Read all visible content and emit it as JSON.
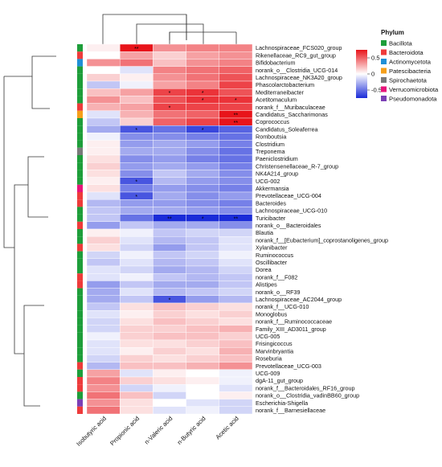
{
  "chart_data": {
    "type": "heatmap",
    "columns": [
      "Isobutyric acid",
      "Propionic acid",
      "n-Valeric acid",
      "n-Butyric acid",
      "Acetic acid"
    ],
    "rows": [
      {
        "name": "Lachnospiraceae_FCS020_group",
        "phylum": "Bacillota",
        "values": [
          0.05,
          0.75,
          0.35,
          0.4,
          0.4
        ],
        "sig": [
          "",
          "**",
          "",
          "",
          ""
        ]
      },
      {
        "name": "Rikenellaceae_RC9_gut_group",
        "phylum": "Bacteroidota",
        "values": [
          0.0,
          0.3,
          0.15,
          0.3,
          0.35
        ],
        "sig": [
          "",
          "",
          "",
          "",
          ""
        ]
      },
      {
        "name": "Bifidobacterium",
        "phylum": "Actinomycetota",
        "values": [
          0.35,
          0.45,
          0.2,
          0.35,
          0.4
        ],
        "sig": [
          "",
          "",
          "",
          "",
          ""
        ]
      },
      {
        "name": "norank_o__Clostridia_UCG-014",
        "phylum": "Bacillota",
        "values": [
          0.0,
          -0.1,
          0.4,
          0.45,
          0.5
        ],
        "sig": [
          "",
          "",
          "",
          "",
          ""
        ]
      },
      {
        "name": "Lachnospiraceae_NK3A20_group",
        "phylum": "Bacillota",
        "values": [
          0.15,
          0.05,
          0.35,
          0.45,
          0.55
        ],
        "sig": [
          "",
          "",
          "",
          "",
          ""
        ]
      },
      {
        "name": "Phascolarctobacterium",
        "phylum": "Bacillota",
        "values": [
          -0.2,
          -0.05,
          0.3,
          0.4,
          0.6
        ],
        "sig": [
          "",
          "",
          "",
          "",
          ""
        ]
      },
      {
        "name": "Mediterraneibacter",
        "phylum": "Bacillota",
        "values": [
          0.2,
          0.3,
          0.6,
          0.65,
          0.55
        ],
        "sig": [
          "",
          "",
          "*",
          "*",
          ""
        ]
      },
      {
        "name": "Acetitomaculum",
        "phylum": "Bacillota",
        "values": [
          0.35,
          0.2,
          0.55,
          0.65,
          0.65
        ],
        "sig": [
          "",
          "",
          "",
          "*",
          "*"
        ]
      },
      {
        "name": "norank_f__Muribaculaceae",
        "phylum": "Bacteroidota",
        "values": [
          0.25,
          0.3,
          0.6,
          0.6,
          0.6
        ],
        "sig": [
          "",
          "",
          "*",
          "",
          ""
        ]
      },
      {
        "name": "Candidatus_Saccharimonas",
        "phylum": "Patescibacteria",
        "values": [
          -0.1,
          0.25,
          0.45,
          0.5,
          0.75
        ],
        "sig": [
          "",
          "",
          "",
          "",
          "**"
        ]
      },
      {
        "name": "Coprococcus",
        "phylum": "Bacillota",
        "values": [
          -0.2,
          0.15,
          0.5,
          0.6,
          0.75
        ],
        "sig": [
          "",
          "",
          "",
          "",
          "**"
        ]
      },
      {
        "name": "Candidatus_Soleaferrea",
        "phylum": "Bacillota",
        "values": [
          -0.3,
          -0.6,
          -0.5,
          -0.65,
          -0.55
        ],
        "sig": [
          "",
          "*",
          "",
          "*",
          ""
        ]
      },
      {
        "name": "Romboutsia",
        "phylum": "Bacillota",
        "values": [
          -0.05,
          -0.4,
          -0.4,
          -0.45,
          -0.5
        ],
        "sig": [
          "",
          "",
          "",
          "",
          ""
        ]
      },
      {
        "name": "Clostridium",
        "phylum": "Bacillota",
        "values": [
          0.05,
          -0.35,
          -0.3,
          -0.35,
          -0.45
        ],
        "sig": [
          "",
          "",
          "",
          "",
          ""
        ]
      },
      {
        "name": "Treponema",
        "phylum": "Spirochaetota",
        "values": [
          0.05,
          -0.3,
          -0.3,
          -0.4,
          -0.5
        ],
        "sig": [
          "",
          "",
          "",
          "",
          ""
        ]
      },
      {
        "name": "Paeniclostridium",
        "phylum": "Bacillota",
        "values": [
          0.1,
          -0.4,
          -0.35,
          -0.45,
          -0.5
        ],
        "sig": [
          "",
          "",
          "",
          "",
          ""
        ]
      },
      {
        "name": "Christensenellaceae_R-7_group",
        "phylum": "Bacillota",
        "values": [
          0.15,
          -0.35,
          -0.3,
          -0.35,
          -0.45
        ],
        "sig": [
          "",
          "",
          "",
          "",
          ""
        ]
      },
      {
        "name": "NK4A214_group",
        "phylum": "Bacillota",
        "values": [
          0.1,
          -0.4,
          -0.2,
          -0.3,
          -0.4
        ],
        "sig": [
          "",
          "",
          "",
          "",
          ""
        ]
      },
      {
        "name": "UCG-002",
        "phylum": "Bacillota",
        "values": [
          0.05,
          -0.6,
          -0.25,
          -0.35,
          -0.4
        ],
        "sig": [
          "",
          "*",
          "",
          "",
          ""
        ]
      },
      {
        "name": "Akkermansia",
        "phylum": "Verrucomicrobiota",
        "values": [
          0.1,
          -0.45,
          -0.35,
          -0.4,
          -0.45
        ],
        "sig": [
          "",
          "",
          "",
          "",
          ""
        ]
      },
      {
        "name": "Prevotellaceae_UCG-004",
        "phylum": "Bacteroidota",
        "values": [
          -0.1,
          -0.6,
          -0.3,
          -0.4,
          -0.35
        ],
        "sig": [
          "",
          "*",
          "",
          "",
          ""
        ]
      },
      {
        "name": "Bacteroides",
        "phylum": "Bacteroidota",
        "values": [
          -0.25,
          -0.35,
          -0.35,
          -0.4,
          -0.45
        ],
        "sig": [
          "",
          "",
          "",
          "",
          ""
        ]
      },
      {
        "name": "Lachnospiraceae_UCG-010",
        "phylum": "Bacillota",
        "values": [
          -0.2,
          -0.3,
          -0.3,
          -0.35,
          -0.4
        ],
        "sig": [
          "",
          "",
          "",
          "",
          ""
        ]
      },
      {
        "name": "Turicibacter",
        "phylum": "Bacillota",
        "values": [
          -0.2,
          -0.5,
          -0.75,
          -0.75,
          -0.75
        ],
        "sig": [
          "",
          "",
          "**",
          "*",
          "**"
        ]
      },
      {
        "name": "norank_o__Bacteroidales",
        "phylum": "Bacteroidota",
        "values": [
          -0.35,
          -0.2,
          -0.3,
          -0.3,
          -0.4
        ],
        "sig": [
          "",
          "",
          "",
          "",
          ""
        ]
      },
      {
        "name": "Blautia",
        "phylum": "Bacillota",
        "values": [
          0.05,
          -0.05,
          -0.2,
          -0.15,
          -0.15
        ],
        "sig": [
          "",
          "",
          "",
          "",
          ""
        ]
      },
      {
        "name": "norank_f__[Eubacterium]_coprostanoligenes_group",
        "phylum": "Bacillota",
        "values": [
          0.15,
          -0.1,
          -0.25,
          -0.2,
          -0.1
        ],
        "sig": [
          "",
          "",
          "",
          "",
          ""
        ]
      },
      {
        "name": "Xylanibacter",
        "phylum": "Bacteroidota",
        "values": [
          0.1,
          -0.15,
          -0.35,
          -0.2,
          -0.1
        ],
        "sig": [
          "",
          "",
          "",
          "",
          ""
        ]
      },
      {
        "name": "Ruminococcus",
        "phylum": "Bacillota",
        "values": [
          -0.15,
          -0.05,
          -0.2,
          -0.15,
          -0.05
        ],
        "sig": [
          "",
          "",
          "",
          "",
          ""
        ]
      },
      {
        "name": "Oscillibacter",
        "phylum": "Bacillota",
        "values": [
          -0.2,
          -0.1,
          -0.25,
          -0.2,
          -0.1
        ],
        "sig": [
          "",
          "",
          "",
          "",
          ""
        ]
      },
      {
        "name": "Dorea",
        "phylum": "Bacillota",
        "values": [
          -0.1,
          -0.15,
          -0.3,
          -0.25,
          -0.15
        ],
        "sig": [
          "",
          "",
          "",
          "",
          ""
        ]
      },
      {
        "name": "norank_f__F082",
        "phylum": "Bacteroidota",
        "values": [
          -0.1,
          -0.05,
          -0.2,
          -0.25,
          -0.2
        ],
        "sig": [
          "",
          "",
          "",
          "",
          ""
        ]
      },
      {
        "name": "Alistipes",
        "phylum": "Bacteroidota",
        "values": [
          -0.35,
          -0.2,
          -0.3,
          -0.3,
          -0.2
        ],
        "sig": [
          "",
          "",
          "",
          "",
          ""
        ]
      },
      {
        "name": "norank_o__RF39",
        "phylum": "Bacillota",
        "values": [
          -0.3,
          -0.1,
          -0.25,
          -0.2,
          -0.15
        ],
        "sig": [
          "",
          "",
          "",
          "",
          ""
        ]
      },
      {
        "name": "Lachnospiraceae_AC2044_group",
        "phylum": "Bacillota",
        "values": [
          -0.3,
          -0.2,
          -0.6,
          -0.35,
          -0.25
        ],
        "sig": [
          "",
          "",
          "*",
          "",
          ""
        ]
      },
      {
        "name": "norank_f__UCG-010",
        "phylum": "Bacillota",
        "values": [
          -0.2,
          0.1,
          0.2,
          0.15,
          0.1
        ],
        "sig": [
          "",
          "",
          "",
          "",
          ""
        ]
      },
      {
        "name": "Monoglobus",
        "phylum": "Bacillota",
        "values": [
          -0.1,
          0.05,
          0.15,
          0.1,
          0.15
        ],
        "sig": [
          "",
          "",
          "",
          "",
          ""
        ]
      },
      {
        "name": "norank_f__Ruminococcaceae",
        "phylum": "Bacillota",
        "values": [
          -0.15,
          0.1,
          0.2,
          0.15,
          0.1
        ],
        "sig": [
          "",
          "",
          "",
          "",
          ""
        ]
      },
      {
        "name": "Family_XIII_AD3011_group",
        "phylum": "Bacillota",
        "values": [
          -0.15,
          0.15,
          0.15,
          0.2,
          0.25
        ],
        "sig": [
          "",
          "",
          "",
          "",
          ""
        ]
      },
      {
        "name": "UCG-005",
        "phylum": "Bacillota",
        "values": [
          -0.05,
          0.15,
          0.2,
          0.2,
          0.15
        ],
        "sig": [
          "",
          "",
          "",
          "",
          ""
        ]
      },
      {
        "name": "Frisingicoccus",
        "phylum": "Bacillota",
        "values": [
          -0.1,
          0.1,
          0.1,
          0.15,
          0.2
        ],
        "sig": [
          "",
          "",
          "",
          "",
          ""
        ]
      },
      {
        "name": "Marvinbryantia",
        "phylum": "Bacillota",
        "values": [
          -0.1,
          0.05,
          0.15,
          0.1,
          0.25
        ],
        "sig": [
          "",
          "",
          "",
          "",
          ""
        ]
      },
      {
        "name": "Roseburia",
        "phylum": "Bacillota",
        "values": [
          -0.15,
          0.15,
          0.1,
          0.15,
          0.2
        ],
        "sig": [
          "",
          "",
          "",
          "",
          ""
        ]
      },
      {
        "name": "Prevotellaceae_UCG-003",
        "phylum": "Bacteroidota",
        "values": [
          -0.25,
          0.2,
          0.2,
          0.25,
          0.35
        ],
        "sig": [
          "",
          "",
          "",
          "",
          ""
        ]
      },
      {
        "name": "UCG-009",
        "phylum": "Bacillota",
        "values": [
          0.3,
          -0.1,
          0.05,
          0.0,
          -0.05
        ],
        "sig": [
          "",
          "",
          "",
          "",
          ""
        ]
      },
      {
        "name": "dgA-11_gut_group",
        "phylum": "Bacteroidota",
        "values": [
          0.4,
          0.15,
          0.1,
          0.05,
          -0.05
        ],
        "sig": [
          "",
          "",
          "",
          "",
          ""
        ]
      },
      {
        "name": "norank_f__Bacteroidales_RF16_group",
        "phylum": "Bacteroidota",
        "values": [
          0.35,
          -0.15,
          -0.05,
          0.0,
          -0.1
        ],
        "sig": [
          "",
          "",
          "",
          "",
          ""
        ]
      },
      {
        "name": "norank_o__Clostridia_vadinBB60_group",
        "phylum": "Bacillota",
        "values": [
          0.45,
          0.2,
          -0.15,
          0.0,
          0.05
        ],
        "sig": [
          "",
          "",
          "",
          "",
          ""
        ]
      },
      {
        "name": "Escherichia-Shigella",
        "phylum": "Pseudomonadota",
        "values": [
          0.35,
          0.1,
          0.0,
          -0.1,
          -0.15
        ],
        "sig": [
          "",
          "",
          "",
          "",
          ""
        ]
      },
      {
        "name": "norank_f__Barnesiellaceae",
        "phylum": "Bacteroidota",
        "values": [
          0.45,
          0.1,
          -0.1,
          -0.05,
          -0.15
        ],
        "sig": [
          "",
          "",
          "",
          "",
          ""
        ]
      }
    ],
    "color_scale": {
      "min": -0.75,
      "max": 0.75,
      "low": "#1a2bd8",
      "mid": "#ffffff",
      "high": "#e8141a",
      "ticks": [
        0.5,
        0,
        -0.5
      ],
      "tick_labels": [
        "0.5",
        "0",
        "-0.5"
      ]
    },
    "legend": {
      "title": "Phylum",
      "placement": "right",
      "items": [
        {
          "name": "Bacillota",
          "color": "#1e9e3a"
        },
        {
          "name": "Bacteroidota",
          "color": "#ee3b3b"
        },
        {
          "name": "Actinomycetota",
          "color": "#1f8fd6"
        },
        {
          "name": "Patescibacteria",
          "color": "#f59f1a"
        },
        {
          "name": "Spirochaetota",
          "color": "#7a7a7a"
        },
        {
          "name": "Verrucomicrobiota",
          "color": "#e8147a"
        },
        {
          "name": "Pseudomonadota",
          "color": "#7b3fb5"
        }
      ]
    }
  }
}
